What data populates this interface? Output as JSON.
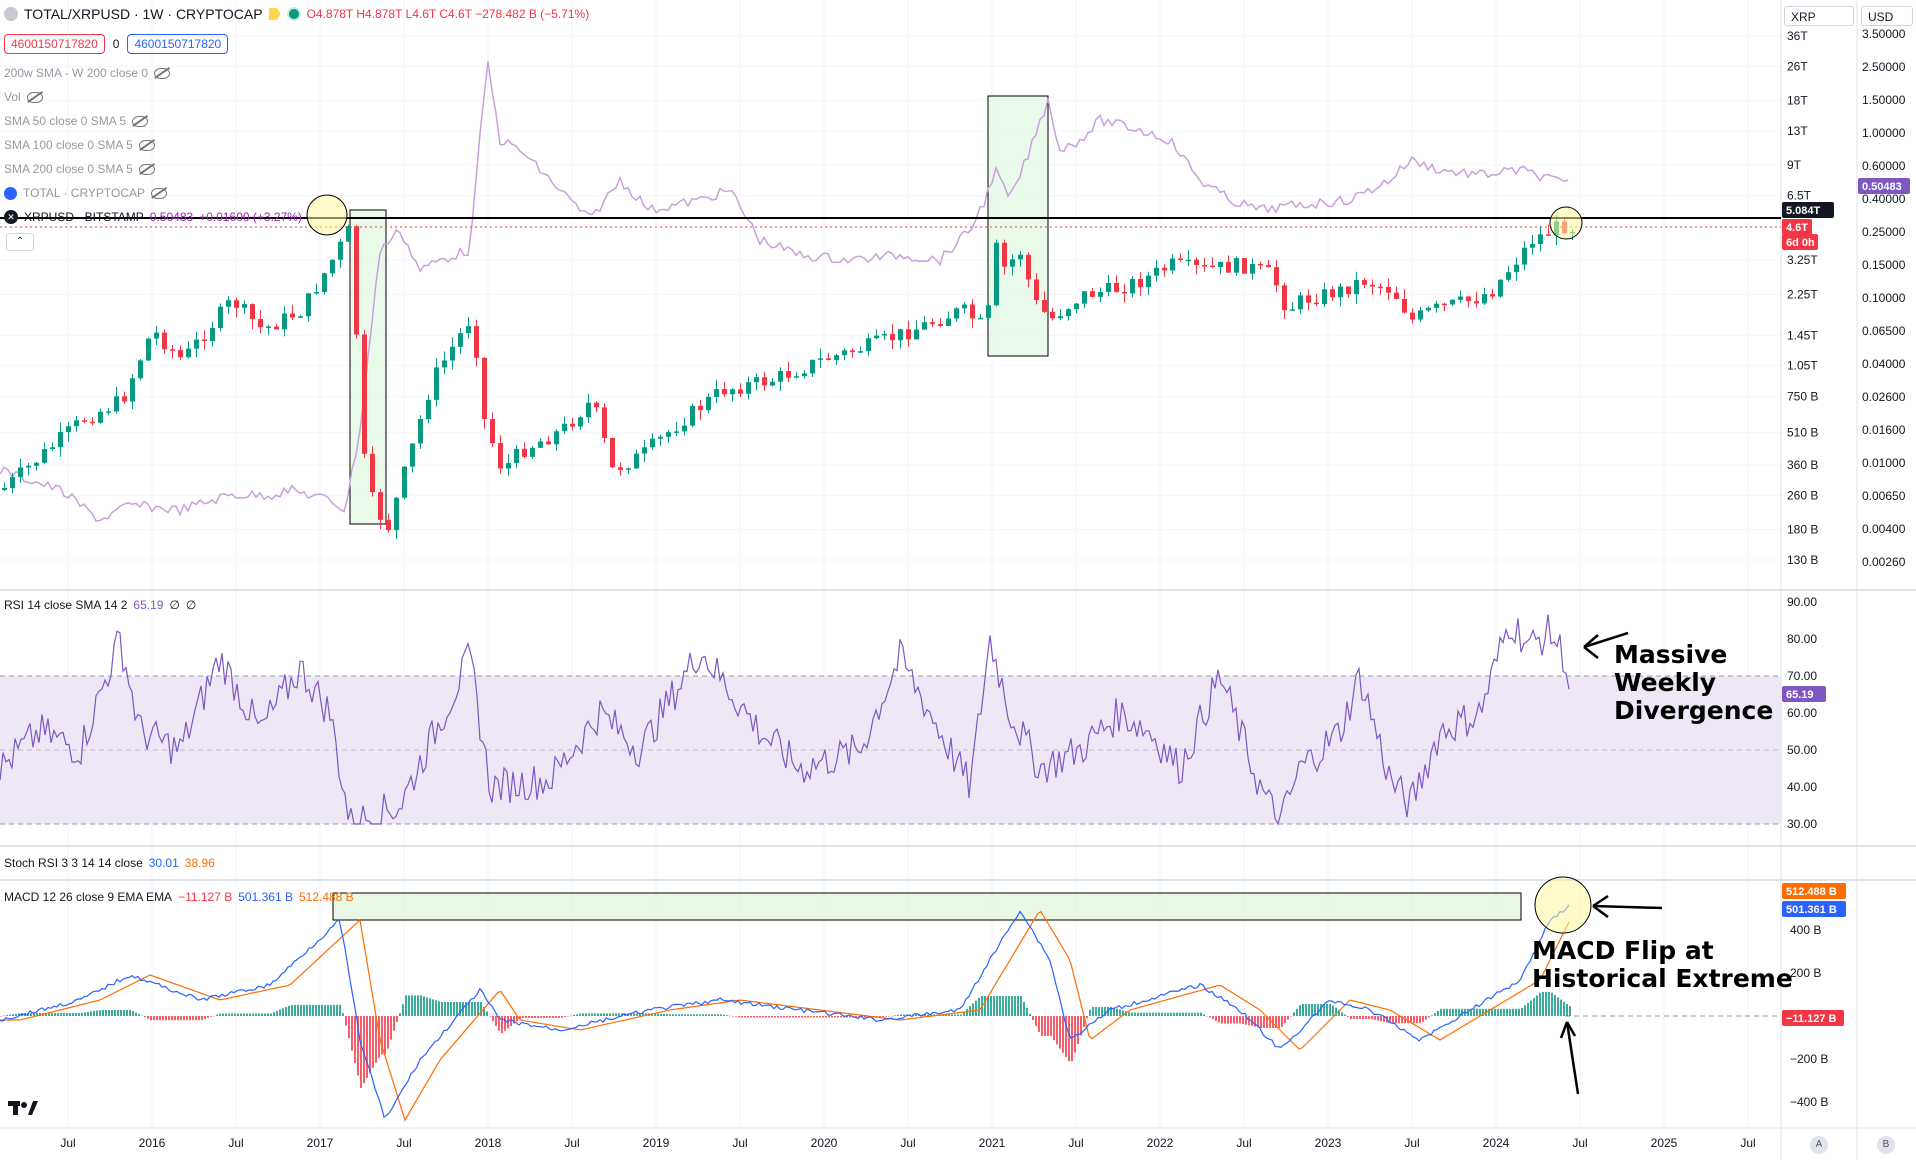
{
  "header": {
    "title": "TOTAL/XRPUSD · 1W · CRYPTOCAP",
    "ohlc": "O4.878T H4.878T L4.6T C4.6T −278.482 B (−5.71%)",
    "sell_value": "4600150717820",
    "spread": "0",
    "buy_value": "4600150717820"
  },
  "indicators": [
    {
      "label": "200w SMA - W 200 close 0"
    },
    {
      "label": "Vol"
    },
    {
      "label": "SMA 50 close 0 SMA 5"
    },
    {
      "label": "SMA 100 close 0 SMA 5"
    },
    {
      "label": "SMA 200 close 0 SMA 5"
    },
    {
      "label": "TOTAL · CRYPTOCAP"
    }
  ],
  "compare": {
    "label": "XRPUSD · BITSTAMP",
    "value": "0.50483",
    "change": "+0.01600 (+3.27%)"
  },
  "top_right": {
    "symbol": "XRP",
    "currency": "USD"
  },
  "colors": {
    "up": "#089981",
    "down": "#f23645",
    "xrp": "#c9a0dc",
    "rsi": "#7e57c2",
    "macd": "#2962ff",
    "signal": "#ff6d00",
    "grid": "#e0e3eb",
    "rsiband": "#ede7f6"
  },
  "chart_data": [
    {
      "type": "candlestick",
      "title": "TOTAL/XRPUSD",
      "log_scale": true,
      "x_ticks": [
        "Jul",
        "2016",
        "Jul",
        "2017",
        "Jul",
        "2018",
        "Jul",
        "2019",
        "Jul",
        "2020",
        "Jul",
        "2021",
        "Jul",
        "2022",
        "Jul",
        "2023",
        "Jul",
        "2024",
        "Jul",
        "2025",
        "Jul"
      ],
      "y_ticks_left": [
        "36T",
        "26T",
        "18T",
        "13T",
        "9T",
        "6.5T",
        "3.25T",
        "2.25T",
        "1.45T",
        "1.05T",
        "750 B",
        "510 B",
        "360 B",
        "260 B",
        "180 B",
        "130 B"
      ],
      "y_ticks_right": [
        "3.50000",
        "2.50000",
        "1.50000",
        "1.00000",
        "0.60000",
        "0.40000",
        "0.25000",
        "0.15000",
        "0.10000",
        "0.06500",
        "0.04000",
        "0.02600",
        "0.01600",
        "0.01000",
        "0.00650",
        "0.00400",
        "0.00260"
      ],
      "last_price_label": "4.6T",
      "countdown": "6d 0h",
      "horizontal_line_label": "5.084T",
      "xrp_price_label": "0.50483",
      "key_points": [
        {
          "date": "2015-07",
          "value": "0.35T"
        },
        {
          "date": "2016-01",
          "value": "0.45T"
        },
        {
          "date": "2016-07",
          "value": "1.2T"
        },
        {
          "date": "2017-01",
          "value": "3.6T"
        },
        {
          "date": "2017-04",
          "value": "0.22T"
        },
        {
          "date": "2017-05",
          "value": "0.13T"
        },
        {
          "date": "2017-12",
          "value": "1.7T"
        },
        {
          "date": "2018-01",
          "value": "0.28T"
        },
        {
          "date": "2018-07",
          "value": "0.7T"
        },
        {
          "date": "2018-12",
          "value": "0.4T"
        },
        {
          "date": "2019-07",
          "value": "1.0T"
        },
        {
          "date": "2020-07",
          "value": "1.3T"
        },
        {
          "date": "2020-12",
          "value": "0.9T"
        },
        {
          "date": "2021-01",
          "value": "4.0T"
        },
        {
          "date": "2021-04",
          "value": "1.5T"
        },
        {
          "date": "2021-11",
          "value": "3.0T"
        },
        {
          "date": "2022-06",
          "value": "1.7T"
        },
        {
          "date": "2023-06",
          "value": "1.4T"
        },
        {
          "date": "2024-03",
          "value": "4.6T"
        },
        {
          "date": "2024-06",
          "value": "4.6T"
        }
      ]
    },
    {
      "type": "line",
      "title": "RSI 14 close SMA 14 2",
      "legend_values": [
        "65.19",
        "∅",
        "∅"
      ],
      "y_ticks": [
        "90.00",
        "80.00",
        "70.00",
        "60.00",
        "50.00",
        "40.00",
        "30.00"
      ],
      "last_label": "65.19",
      "ylim": [
        30,
        90
      ]
    },
    {
      "type": "line",
      "title": "Stoch RSI 3 3 14 14 close",
      "legend_values": [
        "30.01",
        "38.96"
      ]
    },
    {
      "type": "bar",
      "title": "MACD 12 26 close 9 EMA EMA",
      "legend_values": [
        "−11.127 B",
        "501.361 B",
        "512.488 B"
      ],
      "y_ticks": [
        "400 B",
        "200 B",
        "−200 B",
        "−400 B"
      ],
      "labels": {
        "signal": "512.488 B",
        "macd": "501.361 B",
        "hist": "−11.127 B"
      }
    }
  ],
  "annotations": {
    "rsi": "Massive\nWeekly\nDivergence",
    "macd": "MACD Flip at\nHistorical Extreme"
  },
  "bottom": {
    "a": "A",
    "b": "B"
  }
}
